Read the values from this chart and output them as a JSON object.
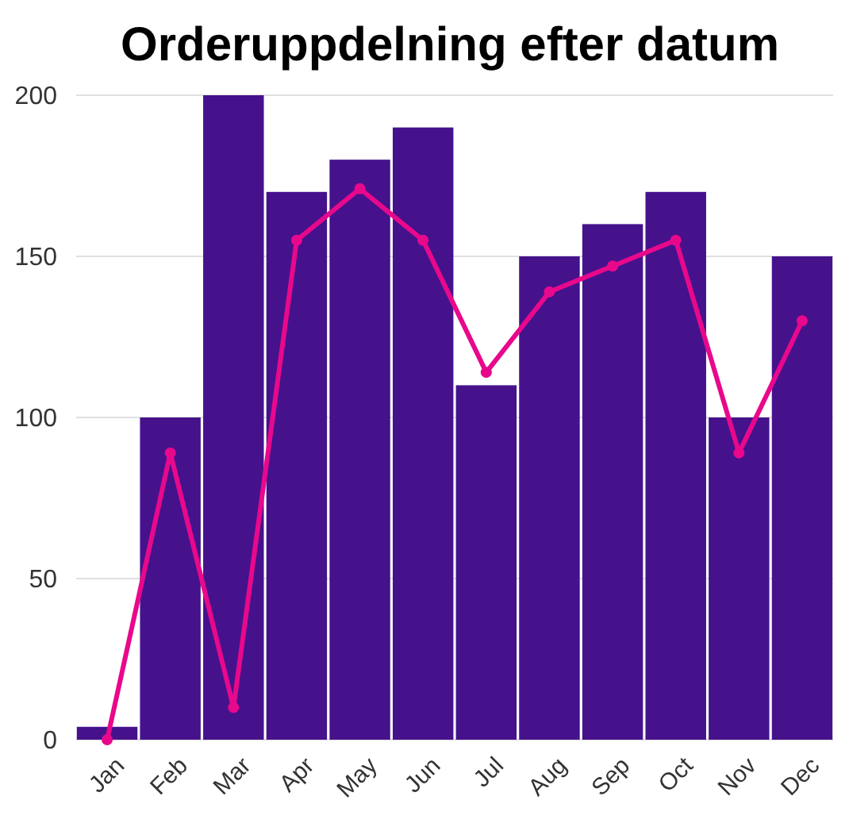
{
  "chart_data": {
    "type": "bar",
    "title": "Orderuppdelning efter datum",
    "categories": [
      "Jan",
      "Feb",
      "Mar",
      "Apr",
      "May",
      "Jun",
      "Jul",
      "Aug",
      "Sep",
      "Oct",
      "Nov",
      "Dec"
    ],
    "series": [
      {
        "color": "#45128c",
        "values": [
          4,
          100,
          200,
          170,
          180,
          190,
          110,
          150,
          160,
          170,
          100,
          150
        ]
      },
      {
        "type": "line",
        "color": "#e8088c",
        "values": [
          0,
          89,
          10,
          155,
          171,
          155,
          114,
          139,
          147,
          155,
          89,
          130
        ]
      }
    ],
    "ylim": [
      0,
      200
    ],
    "yticks": [
      0,
      50,
      100,
      150,
      200
    ],
    "grid": "y",
    "marker": "circle",
    "line_style": "solid"
  }
}
